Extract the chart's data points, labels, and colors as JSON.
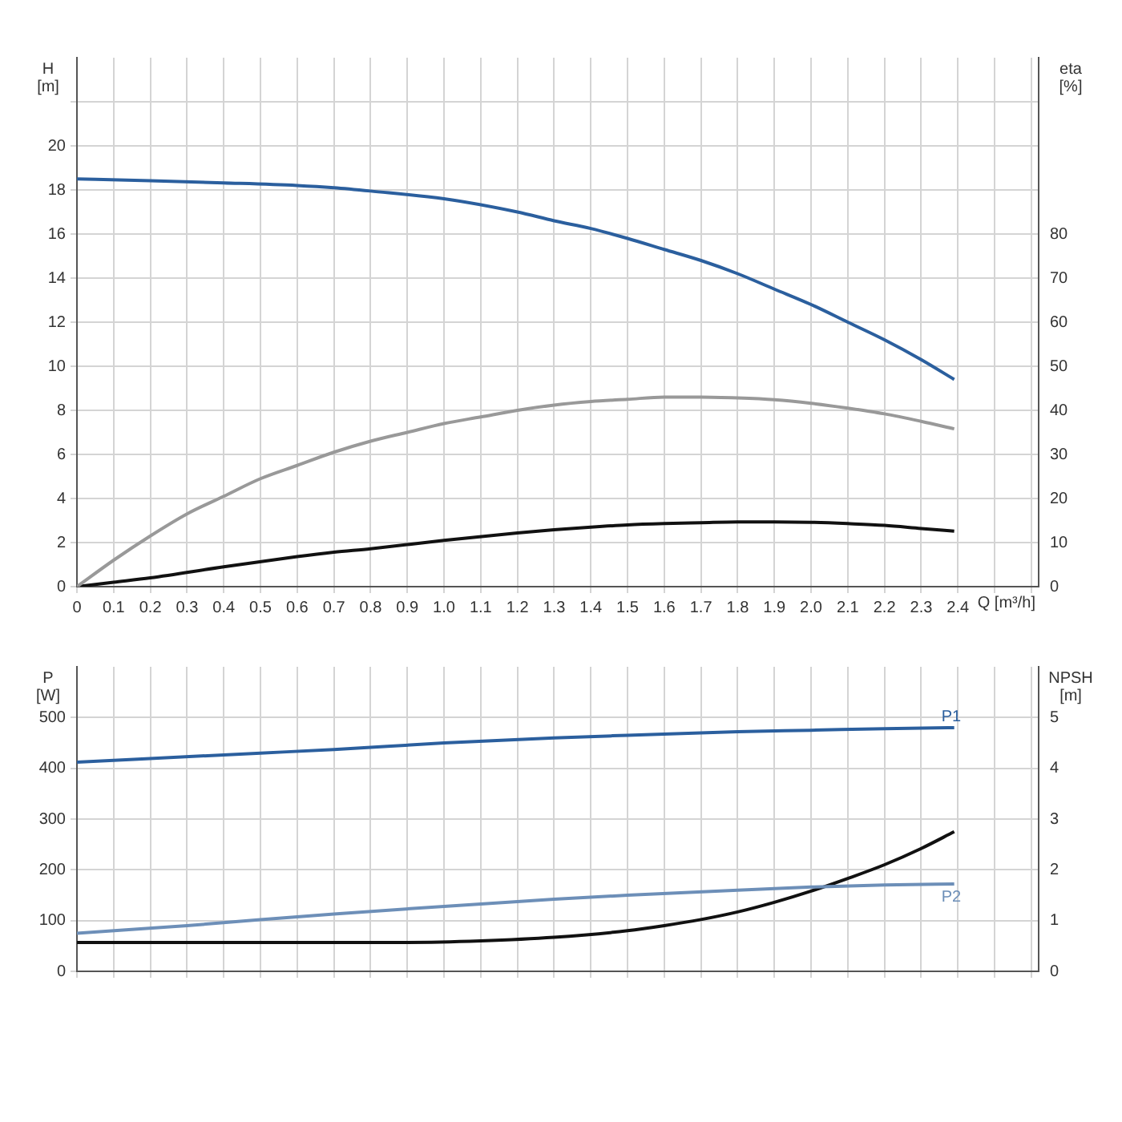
{
  "chart_data": [
    {
      "type": "line",
      "ylabel": "H [m]",
      "y2label": "eta [%]",
      "xlabel": "Q [m³/h]",
      "xlim": [
        0,
        2.62
      ],
      "xticks": [
        0,
        0.1,
        0.2,
        0.3,
        0.4,
        0.5,
        0.6,
        0.7,
        0.8,
        0.9,
        {
          "value": 1,
          "label": "1.0"
        },
        1.1,
        1.2,
        1.3,
        1.4,
        1.5,
        1.6,
        1.7,
        1.8,
        1.9,
        {
          "value": 2,
          "label": "2.0"
        },
        2.1,
        2.2,
        2.3,
        2.4,
        {
          "value": 2.5,
          "label": null
        },
        {
          "value": 2.6,
          "label": null
        }
      ],
      "ylim": [
        0,
        24
      ],
      "yticks": [
        0,
        2,
        4,
        6,
        8,
        10,
        12,
        14,
        16,
        18,
        20,
        {
          "value": 22,
          "label": null
        }
      ],
      "y2lim": [
        0,
        120
      ],
      "y2ticks": [
        0,
        10,
        20,
        30,
        40,
        50,
        60,
        70,
        80
      ],
      "grid": true,
      "legend": false,
      "marker": "none",
      "series": [
        {
          "color": "#2b5f9e",
          "x": [
            0,
            0.2,
            0.4,
            0.6,
            0.7,
            0.8,
            1.0,
            1.2,
            1.3,
            1.4,
            1.5,
            1.6,
            1.7,
            1.8,
            1.9,
            2.0,
            2.1,
            2.2,
            2.3,
            2.39
          ],
          "values": [
            18.5,
            18.42,
            18.32,
            18.2,
            18.1,
            17.95,
            17.6,
            17.0,
            16.6,
            16.25,
            15.8,
            15.3,
            14.8,
            14.2,
            13.5,
            12.8,
            12.0,
            11.2,
            10.3,
            9.4
          ]
        },
        {
          "color": "#999999",
          "axis": "y2",
          "x": [
            0,
            0.1,
            0.2,
            0.3,
            0.4,
            0.5,
            0.6,
            0.7,
            0.8,
            0.9,
            1.0,
            1.1,
            1.2,
            1.3,
            1.4,
            1.5,
            1.6,
            1.7,
            1.8,
            1.9,
            2.0,
            2.1,
            2.2,
            2.3,
            2.39
          ],
          "values": [
            0,
            6,
            11.5,
            16.5,
            20.5,
            24.5,
            27.5,
            30.5,
            33,
            35,
            37,
            38.5,
            40,
            41.2,
            42,
            42.5,
            43,
            43,
            42.8,
            42.4,
            41.6,
            40.5,
            39.2,
            37.5,
            35.8
          ]
        },
        {
          "color": "#111111",
          "axis": "y2",
          "x": [
            0,
            0.1,
            0.2,
            0.4,
            0.6,
            0.7,
            0.8,
            1.0,
            1.2,
            1.3,
            1.4,
            1.5,
            1.6,
            1.7,
            1.8,
            1.9,
            2.0,
            2.1,
            2.2,
            2.3,
            2.39
          ],
          "values": [
            0,
            1,
            2,
            4.5,
            6.8,
            7.8,
            8.6,
            10.5,
            12.2,
            12.9,
            13.5,
            14,
            14.3,
            14.5,
            14.7,
            14.7,
            14.6,
            14.3,
            13.9,
            13.2,
            12.6
          ]
        }
      ]
    },
    {
      "type": "line",
      "ylabel": "P [W]",
      "y2label": "NPSH [m]",
      "xlim": [
        0,
        2.62
      ],
      "xticks": [
        0,
        0.1,
        0.2,
        0.3,
        0.4,
        0.5,
        0.6,
        0.7,
        0.8,
        0.9,
        1,
        1.1,
        1.2,
        1.3,
        1.4,
        1.5,
        1.6,
        1.7,
        1.8,
        1.9,
        2,
        2.1,
        2.2,
        2.3,
        2.4,
        2.5,
        2.6
      ],
      "ylim": [
        0,
        600
      ],
      "yticks": [
        0,
        100,
        200,
        300,
        400,
        500
      ],
      "y2lim": [
        0,
        6
      ],
      "y2ticks": [
        0,
        1,
        2,
        3,
        4,
        5
      ],
      "tick_labels": "y",
      "grid": true,
      "legend": false,
      "marker": "none",
      "series": [
        {
          "name": "P1",
          "color": "#2b5f9e",
          "x": [
            0,
            0.5,
            0.7,
            1.0,
            1.3,
            1.5,
            1.8,
            2.0,
            2.2,
            2.39
          ],
          "values": [
            412,
            430,
            437,
            450,
            460,
            465,
            472,
            475,
            478,
            480
          ]
        },
        {
          "name": "P2",
          "color": "#6d8fb8",
          "x": [
            0,
            0.3,
            0.5,
            0.7,
            1.0,
            1.3,
            1.5,
            1.8,
            2.0,
            2.2,
            2.39
          ],
          "values": [
            75,
            90,
            102,
            113,
            128,
            142,
            150,
            160,
            166,
            170,
            172
          ]
        },
        {
          "color": "#111111",
          "axis": "y2",
          "x": [
            0,
            0.69,
            0.9,
            1.1,
            1.3,
            1.5,
            1.6,
            1.7,
            1.8,
            1.9,
            2.0,
            2.1,
            2.2,
            2.3,
            2.39
          ],
          "values": [
            0.57,
            0.57,
            0.57,
            0.6,
            0.67,
            0.8,
            0.9,
            1.02,
            1.17,
            1.36,
            1.58,
            1.83,
            2.1,
            2.42,
            2.75
          ]
        }
      ]
    }
  ]
}
